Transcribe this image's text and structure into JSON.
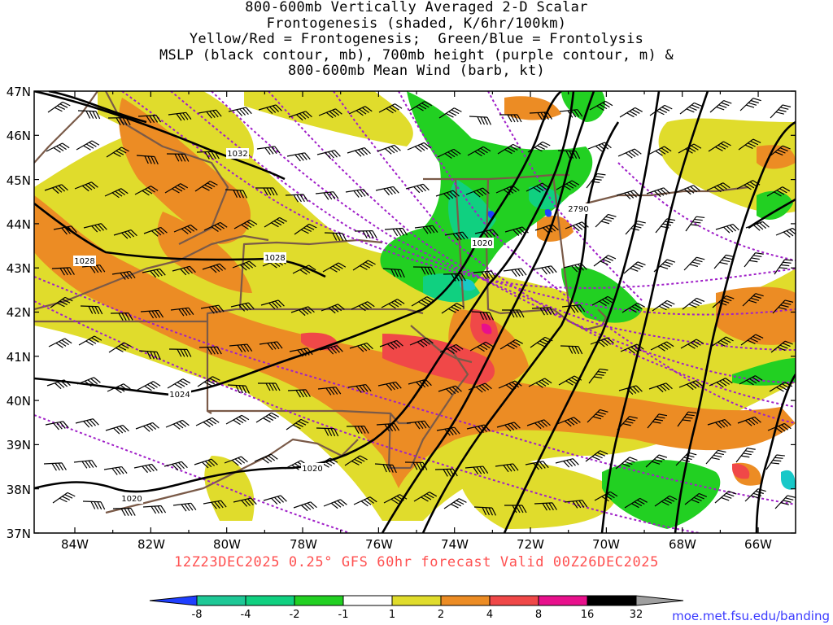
{
  "title_lines": [
    "800-600mb Vertically Averaged 2-D Scalar",
    "Frontogenesis (shaded, K/6hr/100km)",
    "Yellow/Red = Frontogenesis;  Green/Blue = Frontolysis",
    "MSLP (black contour, mb), 700mb height (purple contour, m) &",
    "800-600mb Mean Wind (barb, kt)"
  ],
  "lat_labels": [
    "47N",
    "46N",
    "45N",
    "44N",
    "43N",
    "42N",
    "41N",
    "40N",
    "39N",
    "38N",
    "37N"
  ],
  "lon_labels": [
    "84W",
    "82W",
    "80W",
    "78W",
    "76W",
    "74W",
    "72W",
    "70W",
    "68W",
    "66W"
  ],
  "contour_labels": {
    "mslp": [
      "1032",
      "1028",
      "1028",
      "1020",
      "1024",
      "1020",
      "1020"
    ],
    "height": [
      "2790"
    ]
  },
  "valid_text": "12Z23DEC2025 0.25° GFS 60hr forecast Valid 00Z26DEC2025",
  "colorbar": {
    "labels": [
      "-8",
      "-4",
      "-2",
      "-1",
      "1",
      "2",
      "4",
      "8",
      "16",
      "32"
    ],
    "colors": [
      "#1f3fff",
      "#1ec896",
      "#10d080",
      "#22d022",
      "#ffffff",
      "#e0dc2c",
      "#ec8c24",
      "#f04848",
      "#e8108c",
      "#000000",
      "#a0a0a0"
    ]
  },
  "colors": {
    "mslp": "#000000",
    "height": "#a020c8",
    "borders": "#7a5a48",
    "barbs": "#000000",
    "valid_text": "#ff5050",
    "link": "#3a3aff"
  },
  "source": "moe.met.fsu.edu/banding"
}
